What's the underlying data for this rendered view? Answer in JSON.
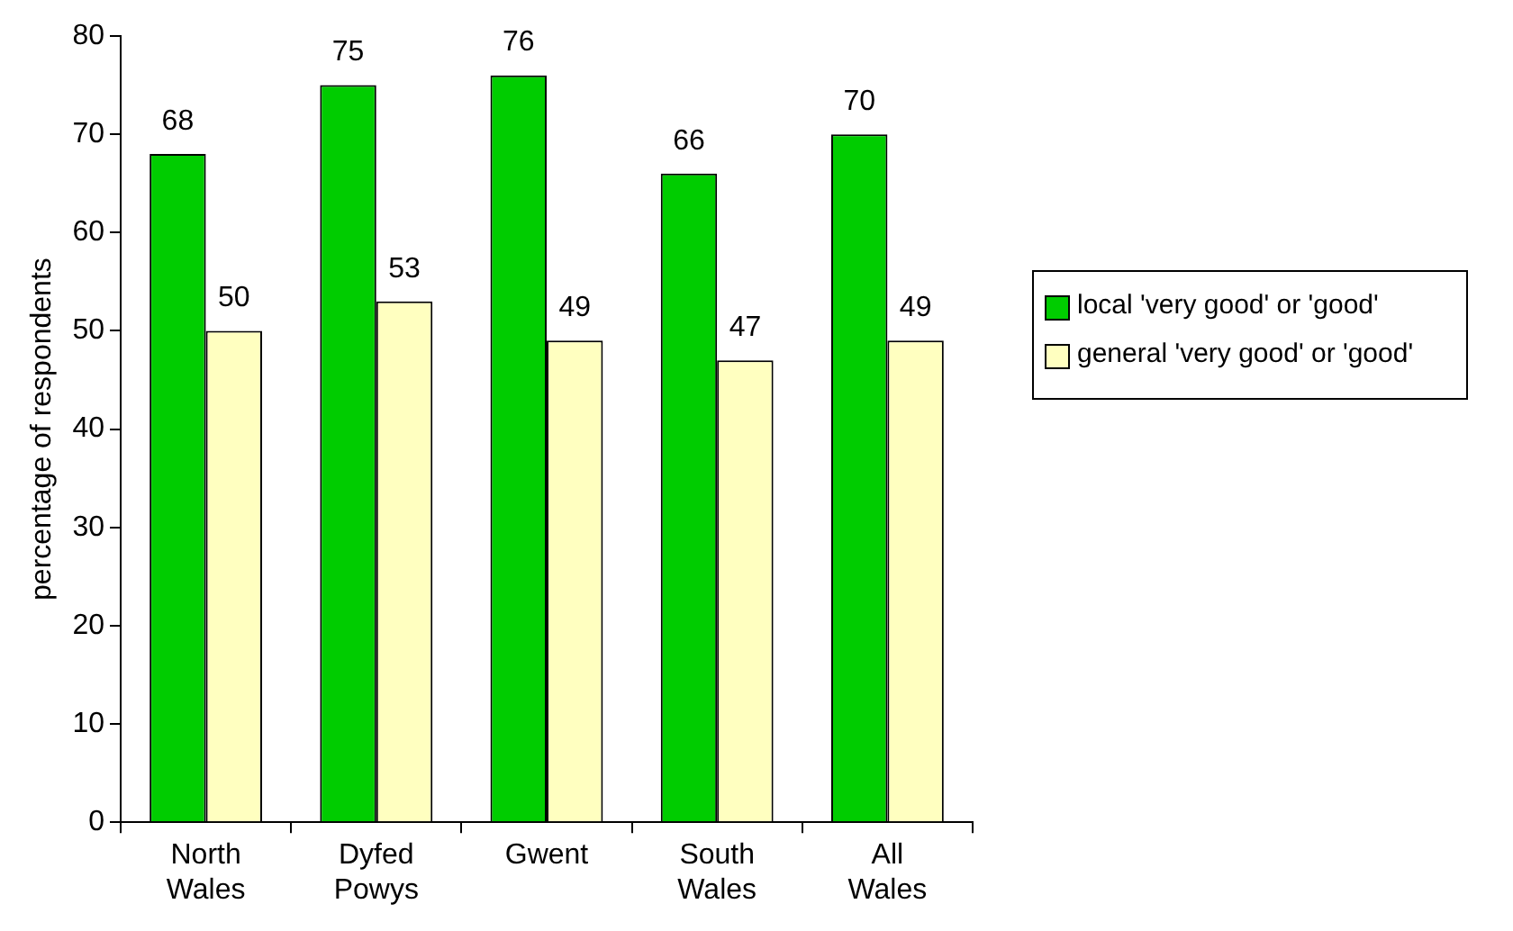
{
  "chart_data": {
    "type": "bar",
    "ylabel": "percentage of respondents",
    "categories": [
      "North Wales",
      "Dyfed Powys",
      "Gwent",
      "South Wales",
      "All Wales"
    ],
    "series": [
      {
        "name": "local 'very good' or 'good'",
        "color": "#00cc00",
        "values": [
          68,
          75,
          76,
          66,
          70
        ]
      },
      {
        "name": "general 'very good' or 'good'",
        "color": "#ffffc0",
        "values": [
          50,
          53,
          49,
          47,
          49
        ]
      }
    ],
    "ylim": [
      0,
      80
    ],
    "yticks": [
      0,
      10,
      20,
      30,
      40,
      50,
      60,
      70,
      80
    ],
    "grid": false,
    "legend": "right",
    "data_labels": true
  }
}
